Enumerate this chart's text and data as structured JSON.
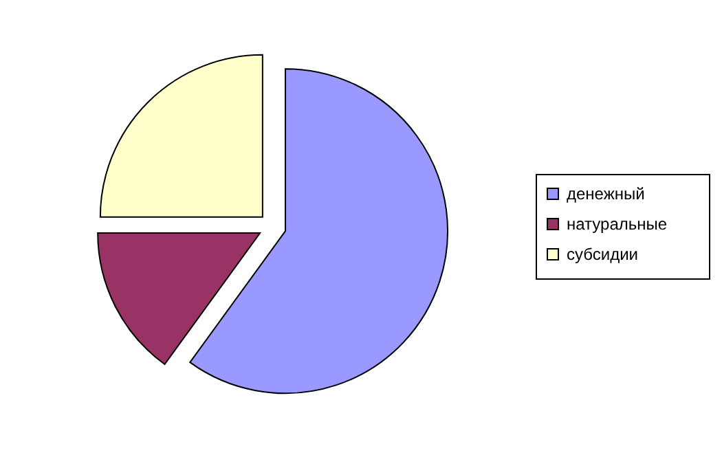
{
  "chart_data": {
    "type": "pie",
    "categories": [
      "денежный",
      "натуральные",
      "субсидии"
    ],
    "values": [
      60,
      15,
      25
    ],
    "colors": [
      "#9999ff",
      "#993366",
      "#ffffcc"
    ],
    "legend": "right"
  }
}
